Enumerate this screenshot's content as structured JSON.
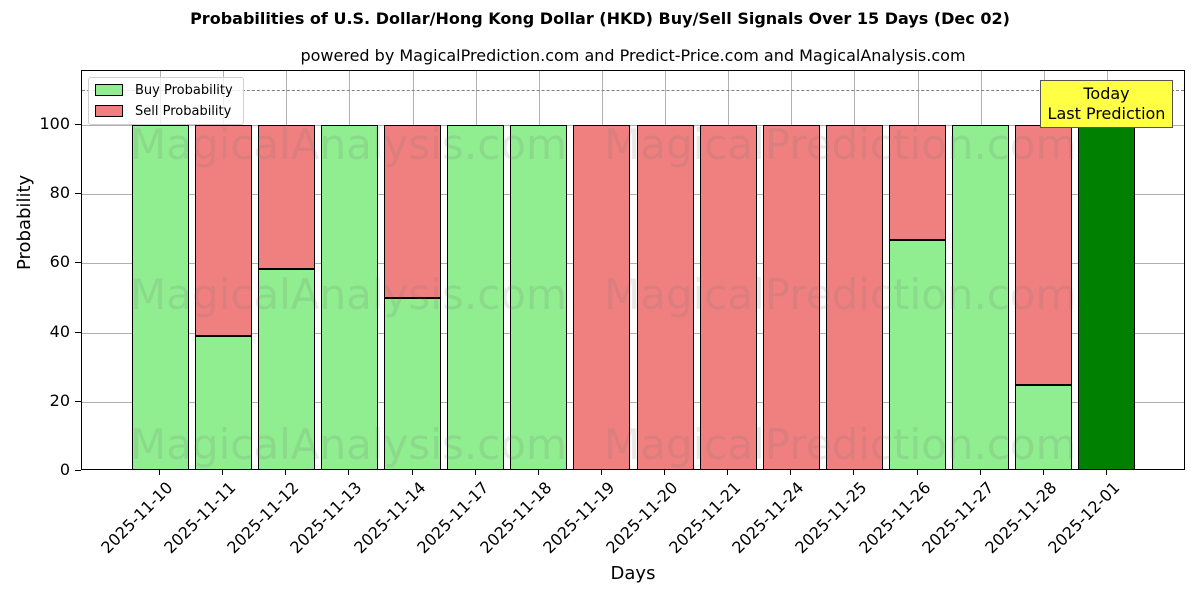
{
  "chart_data": {
    "type": "bar",
    "stacked": true,
    "title": "Probabilities of U.S. Dollar/Hong Kong Dollar (HKD) Buy/Sell Signals Over 15 Days (Dec 02)",
    "subtitle": "powered by MagicalPrediction.com and Predict-Price.com and MagicalAnalysis.com",
    "xlabel": "Days",
    "ylabel": "Probability",
    "ylim": [
      0,
      115
    ],
    "yticks": [
      0,
      20,
      40,
      60,
      80,
      100
    ],
    "grid": true,
    "legend_position": "upper left",
    "categories": [
      "2025-11-10",
      "2025-11-11",
      "2025-11-12",
      "2025-11-13",
      "2025-11-14",
      "2025-11-17",
      "2025-11-18",
      "2025-11-19",
      "2025-11-20",
      "2025-11-21",
      "2025-11-24",
      "2025-11-25",
      "2025-11-26",
      "2025-11-27",
      "2025-11-28",
      "2025-12-01"
    ],
    "series": [
      {
        "name": "Buy Probability",
        "color": "#90ee90",
        "values": [
          100,
          39,
          58.3,
          100,
          50,
          100,
          100,
          0,
          0,
          0,
          0,
          0,
          66.7,
          100,
          25,
          100
        ]
      },
      {
        "name": "Sell Probability",
        "color": "#f08080",
        "values": [
          0,
          61,
          41.7,
          0,
          50,
          0,
          0,
          100,
          100,
          100,
          100,
          100,
          33.3,
          0,
          75,
          0
        ]
      }
    ],
    "highlight": {
      "category": "2025-12-01",
      "color": "#008000",
      "label": "Today\nLast Prediction"
    },
    "reference_line": {
      "y": 110,
      "style": "dashed",
      "color": "#808080"
    },
    "annotations": [
      {
        "text": "Today Last Prediction",
        "background": "#ffff44"
      }
    ],
    "watermarks": [
      "MagicalAnalysis.com",
      "MagicalPrediction.com"
    ]
  },
  "legend": {
    "buy": "Buy Probability",
    "sell": "Sell Probability"
  },
  "annotation": {
    "line1": "Today",
    "line2": "Last Prediction"
  },
  "watermark": {
    "left": "MagicalAnalysis.com",
    "right": "MagicalPrediction.com"
  }
}
